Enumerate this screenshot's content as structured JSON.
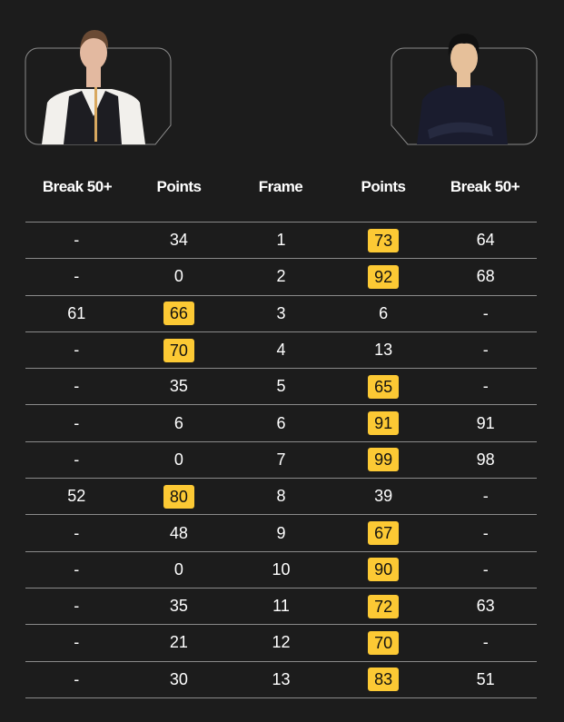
{
  "colors": {
    "background": "#1c1c1c",
    "winner_highlight": "#fcc934"
  },
  "players": [
    {
      "name": "player-1-photo"
    },
    {
      "name": "player-2-photo"
    }
  ],
  "headers": [
    "Break 50+",
    "Points",
    "Frame",
    "Points",
    "Break 50+"
  ],
  "rows": [
    {
      "b1": "-",
      "p1": "34",
      "frame": "1",
      "p2": "73",
      "b2": "64",
      "winner": 2
    },
    {
      "b1": "-",
      "p1": "0",
      "frame": "2",
      "p2": "92",
      "b2": "68",
      "winner": 2
    },
    {
      "b1": "61",
      "p1": "66",
      "frame": "3",
      "p2": "6",
      "b2": "-",
      "winner": 1
    },
    {
      "b1": "-",
      "p1": "70",
      "frame": "4",
      "p2": "13",
      "b2": "-",
      "winner": 1
    },
    {
      "b1": "-",
      "p1": "35",
      "frame": "5",
      "p2": "65",
      "b2": "-",
      "winner": 2
    },
    {
      "b1": "-",
      "p1": "6",
      "frame": "6",
      "p2": "91",
      "b2": "91",
      "winner": 2
    },
    {
      "b1": "-",
      "p1": "0",
      "frame": "7",
      "p2": "99",
      "b2": "98",
      "winner": 2
    },
    {
      "b1": "52",
      "p1": "80",
      "frame": "8",
      "p2": "39",
      "b2": "-",
      "winner": 1
    },
    {
      "b1": "-",
      "p1": "48",
      "frame": "9",
      "p2": "67",
      "b2": "-",
      "winner": 2
    },
    {
      "b1": "-",
      "p1": "0",
      "frame": "10",
      "p2": "90",
      "b2": "-",
      "winner": 2
    },
    {
      "b1": "-",
      "p1": "35",
      "frame": "11",
      "p2": "72",
      "b2": "63",
      "winner": 2
    },
    {
      "b1": "-",
      "p1": "21",
      "frame": "12",
      "p2": "70",
      "b2": "-",
      "winner": 2
    },
    {
      "b1": "-",
      "p1": "30",
      "frame": "13",
      "p2": "83",
      "b2": "51",
      "winner": 2
    }
  ]
}
